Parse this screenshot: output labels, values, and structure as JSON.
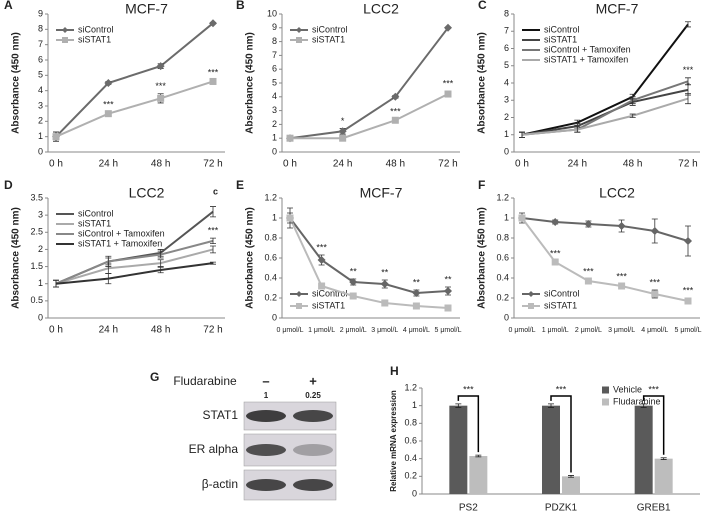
{
  "chart_data": [
    {
      "type": "line",
      "panel": "A",
      "title": "MCF-7",
      "y_label": "Absorbance (450 nm)",
      "categories": [
        "0 h",
        "24 h",
        "48 h",
        "72 h"
      ],
      "ylim": [
        0,
        9
      ],
      "yticks": [
        0,
        1,
        2,
        3,
        4,
        5,
        6,
        7,
        8,
        9
      ],
      "legend": "upper left",
      "series": [
        {
          "name": "siControl",
          "color": "#6b6b6b",
          "marker": "diamond",
          "values": [
            1,
            4.5,
            5.6,
            8.4
          ],
          "errors": [
            0.3,
            0.1,
            0.15,
            0.05
          ],
          "significance": [
            null,
            null,
            null,
            null
          ]
        },
        {
          "name": "siSTAT1",
          "color": "#b0b0b0",
          "marker": "square",
          "values": [
            1,
            2.5,
            3.5,
            4.6
          ],
          "errors": [
            0.3,
            0.1,
            0.3,
            0.1
          ],
          "significance": [
            null,
            "***",
            "***",
            "***"
          ]
        }
      ]
    },
    {
      "type": "line",
      "panel": "B",
      "title": "LCC2",
      "y_label": "Absorbance (450 nm)",
      "categories": [
        "0 h",
        "24 h",
        "48 h",
        "72 h"
      ],
      "ylim": [
        0,
        10
      ],
      "yticks": [
        0,
        1,
        2,
        3,
        4,
        5,
        6,
        7,
        8,
        9,
        10
      ],
      "legend": "upper left",
      "series": [
        {
          "name": "siControl",
          "color": "#6b6b6b",
          "marker": "diamond",
          "values": [
            1,
            1.5,
            4,
            9
          ],
          "errors": [
            0.1,
            0.2,
            0.1,
            0.05
          ],
          "significance": [
            null,
            "*",
            null,
            null
          ]
        },
        {
          "name": "siSTAT1",
          "color": "#b0b0b0",
          "marker": "square",
          "values": [
            1,
            1,
            2.3,
            4.2
          ],
          "errors": [
            0.1,
            0.1,
            0.1,
            0.2
          ],
          "significance": [
            null,
            null,
            "***",
            "***"
          ]
        }
      ]
    },
    {
      "type": "line",
      "panel": "C",
      "title": "MCF-7",
      "y_label": "Absorbance (450 nm)",
      "categories": [
        "0 h",
        "24 h",
        "48 h",
        "72 h"
      ],
      "ylim": [
        0,
        8
      ],
      "yticks": [
        0,
        1,
        2,
        3,
        4,
        5,
        6,
        7,
        8
      ],
      "legend": "upper left",
      "series": [
        {
          "name": "siControl",
          "color": "#111111",
          "marker": "none",
          "values": [
            1,
            1.7,
            3.2,
            7.4
          ],
          "errors": [
            0.15,
            0.15,
            0.15,
            0.15
          ],
          "significance": [
            null,
            null,
            null,
            null
          ]
        },
        {
          "name": "siSTAT1",
          "color": "#444444",
          "marker": "none",
          "values": [
            1,
            1.5,
            2.9,
            3.6
          ],
          "errors": [
            0.15,
            0.15,
            0.2,
            0.3
          ],
          "significance": [
            null,
            null,
            null,
            null
          ]
        },
        {
          "name": "siControl + Tamoxifen",
          "color": "#777777",
          "marker": "none",
          "values": [
            1,
            1.3,
            3.0,
            4.1
          ],
          "errors": [
            0.15,
            0.15,
            0.2,
            0.2
          ],
          "significance": [
            null,
            null,
            null,
            "***"
          ]
        },
        {
          "name": "siSTAT1 + Tamoxifen",
          "color": "#aaaaaa",
          "marker": "none",
          "values": [
            1,
            1.3,
            2.1,
            3.1
          ],
          "errors": [
            0.15,
            0.15,
            0.1,
            0.3
          ],
          "significance": [
            null,
            null,
            null,
            "*"
          ]
        }
      ]
    },
    {
      "type": "line",
      "panel": "D",
      "title": "LCC2",
      "note": "c",
      "y_label": "Absorbance (450 nm)",
      "categories": [
        "0 h",
        "24 h",
        "48 h",
        "72 h"
      ],
      "ylim": [
        0,
        3.5
      ],
      "yticks": [
        0,
        0.5,
        1,
        1.5,
        2,
        2.5,
        3,
        3.5
      ],
      "legend": "upper left",
      "series": [
        {
          "name": "siControl",
          "color": "#555555",
          "marker": "none",
          "values": [
            1,
            1.65,
            1.9,
            3.1
          ],
          "errors": [
            0.1,
            0.15,
            0.1,
            0.15
          ],
          "significance": [
            null,
            null,
            null,
            null
          ]
        },
        {
          "name": "siSTAT1",
          "color": "#aaaaaa",
          "marker": "none",
          "values": [
            1,
            1.45,
            1.6,
            2.0
          ],
          "errors": [
            0.1,
            0.15,
            0.1,
            0.1
          ],
          "significance": [
            null,
            null,
            null,
            null
          ]
        },
        {
          "name": "siControl + Tamoxifen",
          "color": "#888888",
          "marker": "none",
          "values": [
            1,
            1.65,
            1.85,
            2.25
          ],
          "errors": [
            0.1,
            0.1,
            0.1,
            0.08
          ],
          "significance": [
            null,
            null,
            null,
            "***"
          ]
        },
        {
          "name": "siSTAT1 + Tamoxifen",
          "color": "#333333",
          "marker": "none",
          "values": [
            1,
            1.15,
            1.4,
            1.6
          ],
          "errors": [
            0.1,
            0.15,
            0.08,
            0.03
          ],
          "significance": [
            null,
            null,
            null,
            null
          ]
        }
      ]
    },
    {
      "type": "line",
      "panel": "E",
      "title": "MCF-7",
      "y_label": "Absorbance (450 nm)",
      "categories": [
        "0 μmol/L",
        "1 μmol/L",
        "2 μmol/L",
        "3 μmol/L",
        "4 μmol/L",
        "5 μmol/L"
      ],
      "ylim": [
        0,
        1.2
      ],
      "yticks": [
        0,
        0.2,
        0.4,
        0.6,
        0.8,
        1,
        1.2
      ],
      "legend": "lower left",
      "series": [
        {
          "name": "siControl",
          "color": "#666666",
          "marker": "diamond",
          "values": [
            1,
            0.58,
            0.36,
            0.34,
            0.25,
            0.27
          ],
          "errors": [
            0.1,
            0.05,
            0.03,
            0.04,
            0.03,
            0.04
          ],
          "significance": [
            null,
            "***",
            "**",
            "**",
            "**",
            "**"
          ]
        },
        {
          "name": "siSTAT1",
          "color": "#bbbbbb",
          "marker": "square",
          "values": [
            1,
            0.32,
            0.22,
            0.15,
            0.12,
            0.1
          ],
          "errors": [
            0.05,
            0.02,
            0.02,
            0.02,
            0.02,
            0.02
          ],
          "significance": [
            null,
            null,
            null,
            null,
            null,
            null
          ]
        }
      ]
    },
    {
      "type": "line",
      "panel": "F",
      "title": "LCC2",
      "y_label": "Absorbance (450 nm)",
      "categories": [
        "0 μmol/L",
        "1 μmol/L",
        "2 μmol/L",
        "3 μmol/L",
        "4 μmol/L",
        "5 μmol/L"
      ],
      "ylim": [
        0,
        1.2
      ],
      "yticks": [
        0,
        0.2,
        0.4,
        0.6,
        0.8,
        1,
        1.2
      ],
      "legend": "lower left",
      "series": [
        {
          "name": "siControl",
          "color": "#666666",
          "marker": "diamond",
          "values": [
            1,
            0.96,
            0.94,
            0.92,
            0.87,
            0.77
          ],
          "errors": [
            0.05,
            0.02,
            0.03,
            0.06,
            0.12,
            0.15
          ],
          "significance": [
            null,
            null,
            null,
            null,
            null,
            null
          ]
        },
        {
          "name": "siSTAT1",
          "color": "#bbbbbb",
          "marker": "square",
          "values": [
            1,
            0.56,
            0.37,
            0.32,
            0.24,
            0.17
          ],
          "errors": [
            0.03,
            0.01,
            0.02,
            0.02,
            0.04,
            0.03
          ],
          "significance": [
            null,
            "***",
            "***",
            "***",
            "***",
            "***"
          ]
        }
      ]
    },
    {
      "type": "blot",
      "panel": "G",
      "treatment": "Fludarabine",
      "lanes": [
        "–",
        "+"
      ],
      "quantification": [
        1,
        0.25
      ],
      "bands": [
        "STAT1",
        "ER alpha",
        "β-actin"
      ]
    },
    {
      "type": "bar",
      "panel": "H",
      "y_label": "Relative mRNA expression",
      "categories": [
        "PS2",
        "PDZK1",
        "GREB1"
      ],
      "ylim": [
        0,
        1.2
      ],
      "yticks": [
        0,
        0.2,
        0.4,
        0.6,
        0.8,
        1,
        1.2
      ],
      "legend": "upper right",
      "significance": [
        "***",
        "***",
        "***"
      ],
      "series": [
        {
          "name": "Vehicle",
          "color": "#5a5a5a",
          "values": [
            1,
            1,
            1
          ],
          "errors": [
            0.02,
            0.02,
            0.02
          ]
        },
        {
          "name": "Fludarabine",
          "color": "#bdbdbd",
          "values": [
            0.43,
            0.2,
            0.4
          ],
          "errors": [
            0.01,
            0.01,
            0.01
          ]
        }
      ]
    }
  ]
}
